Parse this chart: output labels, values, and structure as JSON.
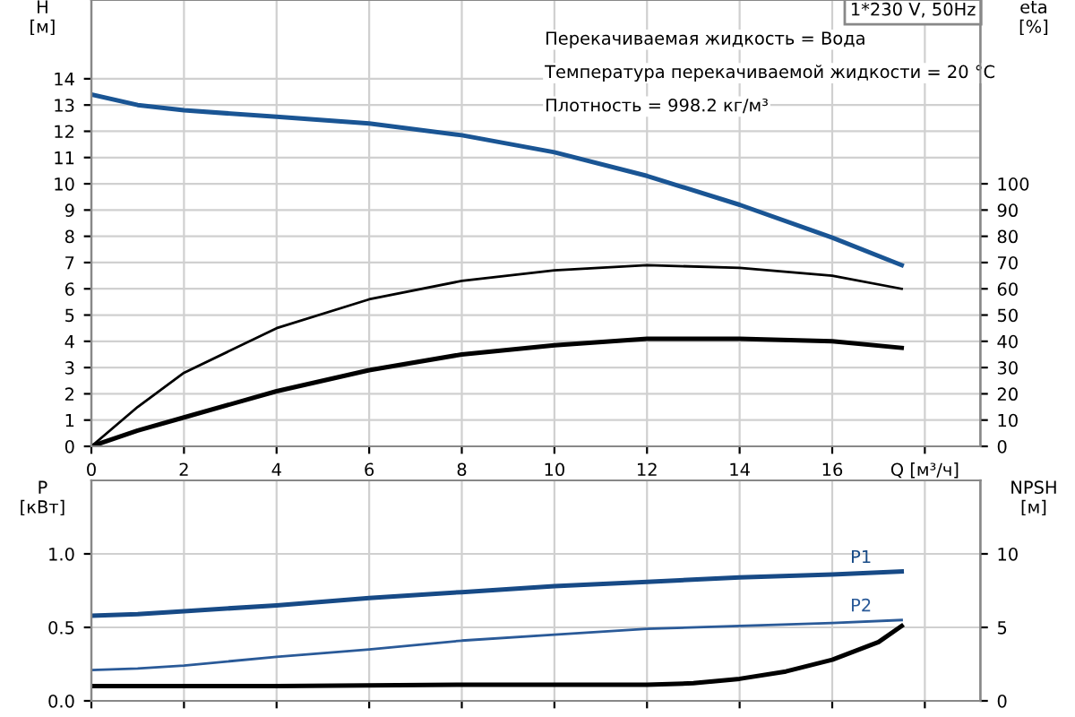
{
  "chart_data": [
    {
      "type": "line",
      "title": "1*230 V, 50Hz",
      "ylabel": "H\n[м]",
      "y2label": "eta\n[%]",
      "annotations": [
        "Перекачиваемая жидкость = Вода",
        "Температура перекачиваемой жидкости = 20 °C",
        "Плотность = 998.2 кг/м³"
      ],
      "xlim": [
        0,
        19.2
      ],
      "xticks": [
        0,
        2,
        4,
        6,
        8,
        10,
        12,
        14,
        16,
        {
          "value": 18,
          "label": "Q [м³/ч]"
        }
      ],
      "ylim": [
        0,
        17
      ],
      "yticks": [
        0,
        1,
        2,
        3,
        4,
        5,
        6,
        7,
        8,
        9,
        10,
        11,
        12,
        13,
        14
      ],
      "y2lim": [
        0,
        170
      ],
      "y2ticks": [
        0,
        10,
        20,
        30,
        40,
        50,
        60,
        70,
        80,
        90,
        100
      ],
      "grid": true,
      "legend": false,
      "marker": "none",
      "line_style": "solid",
      "series": [
        {
          "color": "#1a5594",
          "x": [
            0,
            1,
            2,
            4,
            6,
            8,
            10,
            12,
            14,
            16,
            17.5
          ],
          "values": [
            13.4,
            13.0,
            12.8,
            12.55,
            12.3,
            11.85,
            11.2,
            10.3,
            9.2,
            7.95,
            6.9
          ]
        },
        {
          "color": "#000000",
          "axis": "y2",
          "x": [
            0,
            1,
            2,
            4,
            6,
            8,
            10,
            12,
            14,
            16,
            17.5
          ],
          "values": [
            0,
            15,
            28,
            45,
            56,
            63,
            67,
            69,
            68,
            65,
            60
          ]
        },
        {
          "color": "#000000",
          "axis": "y2",
          "x": [
            0,
            1,
            2,
            4,
            6,
            8,
            10,
            12,
            14,
            16,
            17.5
          ],
          "values": [
            0,
            6,
            11,
            21,
            29,
            35,
            38.5,
            41,
            41,
            40,
            37.5
          ]
        }
      ]
    },
    {
      "type": "line",
      "ylabel": "P\n[кВт]",
      "y2label": "NPSH\n[м]",
      "tick_labels": "y",
      "xlim": [
        0,
        19.2
      ],
      "ylim": [
        0,
        1.5
      ],
      "yticks": [
        {
          "value": 0,
          "label": "0.0"
        },
        {
          "value": 0.5,
          "label": "0.5"
        },
        {
          "value": 1.0,
          "label": "1.0"
        }
      ],
      "y2lim": [
        0,
        15
      ],
      "y2ticks": [
        0,
        5,
        10
      ],
      "grid": true,
      "legend": false,
      "marker": "none",
      "line_style": "solid",
      "series": [
        {
          "name": "P1",
          "color": "#174a86",
          "x": [
            0,
            1,
            2,
            4,
            6,
            8,
            10,
            12,
            14,
            16,
            17.5
          ],
          "values": [
            0.58,
            0.59,
            0.61,
            0.65,
            0.7,
            0.74,
            0.78,
            0.81,
            0.84,
            0.86,
            0.88
          ]
        },
        {
          "name": "P2",
          "color": "#2a5a98",
          "x": [
            0,
            1,
            2,
            4,
            6,
            8,
            10,
            12,
            14,
            16,
            17.5
          ],
          "values": [
            0.21,
            0.22,
            0.24,
            0.3,
            0.35,
            0.41,
            0.45,
            0.49,
            0.51,
            0.53,
            0.55
          ]
        },
        {
          "color": "#000000",
          "axis": "y2",
          "x": [
            0,
            1,
            4,
            8,
            10,
            12,
            13,
            14,
            15,
            16,
            17,
            17.5
          ],
          "values": [
            1.0,
            1.0,
            1.0,
            1.1,
            1.1,
            1.1,
            1.2,
            1.5,
            2.0,
            2.8,
            4.0,
            5.1
          ]
        }
      ]
    }
  ]
}
